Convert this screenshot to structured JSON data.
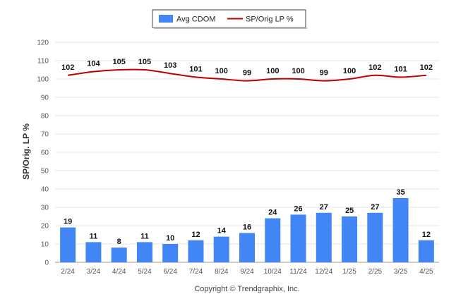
{
  "chart_data": {
    "type": "bar",
    "categories": [
      "2/24",
      "3/24",
      "4/24",
      "5/24",
      "6/24",
      "7/24",
      "8/24",
      "9/24",
      "10/24",
      "11/24",
      "12/24",
      "1/25",
      "2/25",
      "3/25",
      "4/25"
    ],
    "series": [
      {
        "name": "Avg CDOM",
        "type": "bar",
        "color": "#4285f4",
        "values": [
          19,
          11,
          8,
          11,
          10,
          12,
          14,
          16,
          24,
          26,
          27,
          25,
          27,
          35,
          12
        ]
      },
      {
        "name": "SP/Orig LP %",
        "type": "line",
        "color": "#c00000",
        "values": [
          102,
          104,
          105,
          105,
          103,
          101,
          100,
          99,
          100,
          100,
          99,
          100,
          102,
          101,
          102
        ]
      }
    ],
    "ylabel": "SP/Orig. LP %",
    "ylim": [
      0,
      120
    ],
    "yticks": [
      0,
      10,
      20,
      30,
      40,
      50,
      60,
      70,
      80,
      90,
      100,
      110,
      120
    ],
    "grid": true,
    "legend_position": "top-center",
    "footer": "Copyright © Trendgraphix, Inc."
  }
}
